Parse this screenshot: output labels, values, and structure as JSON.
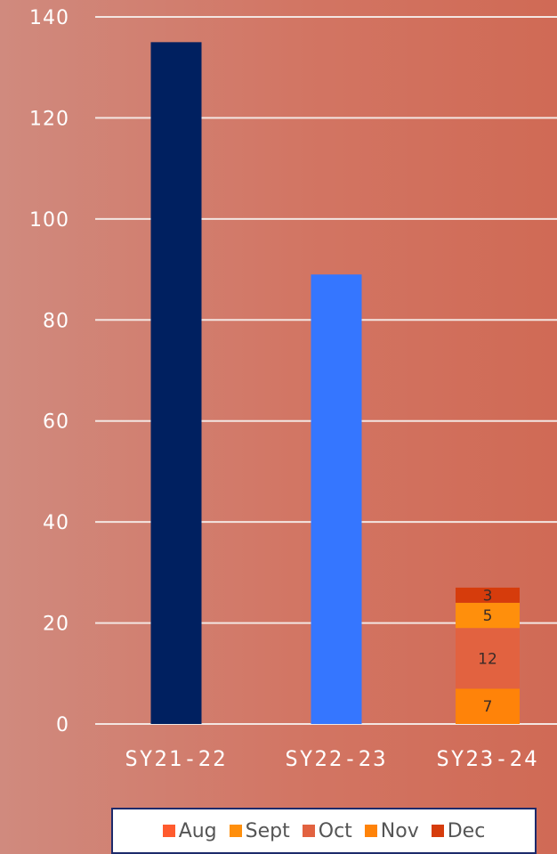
{
  "chart_data": {
    "type": "bar",
    "categories": [
      "SY21-22",
      "SY22-23",
      "SY23-24"
    ],
    "ylim": [
      0,
      140
    ],
    "yticks": [
      0,
      20,
      40,
      60,
      80,
      100,
      120,
      140
    ],
    "grid": true,
    "bars": [
      {
        "category": "SY21-22",
        "value": 135,
        "color": "#002060"
      },
      {
        "category": "SY22-23",
        "value": 89,
        "color": "#3576ff"
      }
    ],
    "stacked": {
      "category": "SY23-24",
      "segments": [
        {
          "series": "Nov",
          "value": 7,
          "label": "7",
          "color": "#ff8309"
        },
        {
          "series": "Oct",
          "value": 12,
          "label": "12",
          "color": "#e26240"
        },
        {
          "series": "Sept",
          "value": 5,
          "label": "5",
          "color": "#ff8f0c"
        },
        {
          "series": "Dec",
          "value": 3,
          "label": "3",
          "color": "#d63c0c"
        }
      ]
    },
    "legend": {
      "placement": "bottom",
      "entries": [
        {
          "name": "Aug",
          "color": "#ff5b2e"
        },
        {
          "name": "Sept",
          "color": "#ff8f0c"
        },
        {
          "name": "Oct",
          "color": "#e26240"
        },
        {
          "name": "Nov",
          "color": "#ff8309"
        },
        {
          "name": "Dec",
          "color": "#d63c0c"
        }
      ]
    }
  }
}
